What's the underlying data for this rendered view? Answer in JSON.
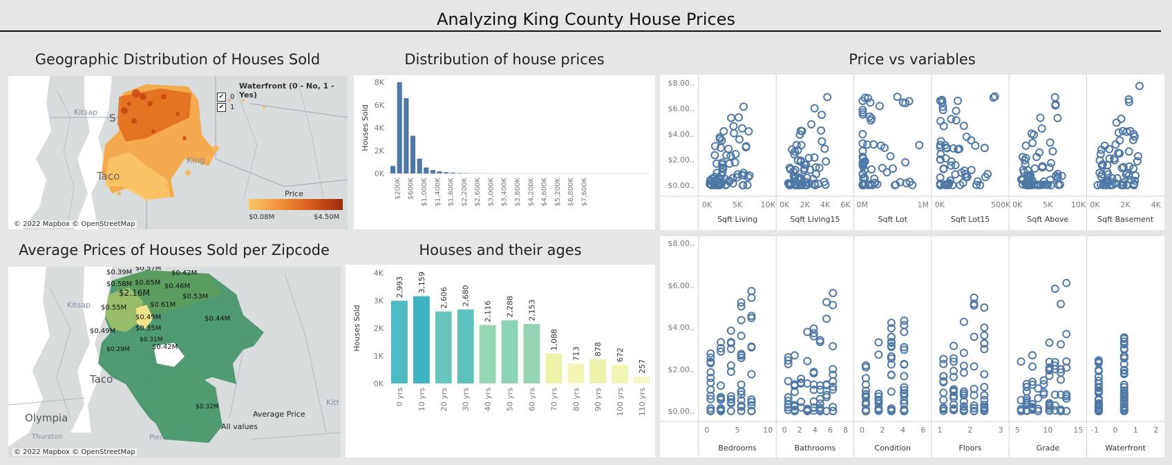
{
  "page": {
    "title": "Analyzing King County House Prices"
  },
  "geo": {
    "title": "Geographic Distribution of Houses Sold",
    "legend_title": "Waterfront (0 - No, 1 - Yes)",
    "legend_items": [
      {
        "label": "0",
        "checked": true
      },
      {
        "label": "1",
        "checked": true
      }
    ],
    "price_legend": {
      "title": "Price",
      "min": "$0.08M",
      "max": "$4.50M"
    },
    "place_labels": [
      "Kitsap",
      "Taco",
      "King",
      "S"
    ],
    "copyright": "© 2022 Mapbox © OpenStreetMap"
  },
  "zip": {
    "title": "Average Prices of Houses Sold per Zipcode",
    "labels": [
      "$0.39M",
      "$0.57M",
      "$0.42M",
      "$0.58M",
      "$0.65M",
      "$0.46M",
      "$2.16M",
      "$0.53M",
      "$0.55M",
      "$0.61M",
      "$0.49M",
      "$0.44M",
      "$0.35M",
      "$0.49M",
      "$0.31M",
      "$0.29M",
      "$0.42M",
      "$0.32M"
    ],
    "place_labels": [
      "Kitsap",
      "Olympia",
      "Thurston",
      "Taco",
      "Pierc",
      "Kitt"
    ],
    "legend_title": "Average Price",
    "legend_value": "All values",
    "copyright": "© 2022 Mapbox © OpenStreetMap"
  },
  "price_vs": {
    "title": "Price vs variables",
    "y_ticks": [
      "$8.00..",
      "$6.00..",
      "$4.00..",
      "$2.00..",
      "$0.00.."
    ],
    "top_row": [
      {
        "label": "Sqft Living",
        "ticks": [
          "0K",
          "5K",
          "10K"
        ]
      },
      {
        "label": "Sqft Living15",
        "ticks": [
          "0K",
          "2K",
          "4K",
          "6K"
        ]
      },
      {
        "label": "Sqft Lot",
        "ticks": [
          "0M",
          "1M"
        ]
      },
      {
        "label": "Sqft Lot15",
        "ticks": [
          "0K",
          "500K"
        ]
      },
      {
        "label": "Sqft Above",
        "ticks": [
          "0K",
          "5K",
          "10K"
        ]
      },
      {
        "label": "Sqft Basement",
        "ticks": [
          "0K",
          "2K",
          "4K"
        ]
      }
    ],
    "bottom_row": [
      {
        "label": "Bedrooms",
        "ticks": [
          "0",
          "5",
          "10"
        ]
      },
      {
        "label": "Bathrooms",
        "ticks": [
          "0",
          "2",
          "4",
          "6",
          "8"
        ]
      },
      {
        "label": "Condition",
        "ticks": [
          "0",
          "2",
          "4",
          "6"
        ]
      },
      {
        "label": "Floors",
        "ticks": [
          "1",
          "2",
          "3"
        ]
      },
      {
        "label": "Grade",
        "ticks": [
          "5",
          "10",
          "15"
        ]
      },
      {
        "label": "Waterfront",
        "ticks": [
          "-1",
          "0",
          "1",
          "2"
        ]
      }
    ]
  },
  "colors": {
    "bar_blue": "#4e79a7",
    "scatter_blue": "#4e79a7",
    "map_green": "#4f9a72"
  },
  "chart_data": [
    {
      "type": "bar",
      "title": "Distribution of house prices",
      "ylabel": "Houses Sold",
      "ylim": [
        0,
        8000
      ],
      "y_ticks": [
        "0K",
        "2K",
        "4K",
        "6K",
        "8K"
      ],
      "x_ticks": [
        "$200K",
        "$600K",
        "$1,000K",
        "$1,400K",
        "$1,800K",
        "$2,200K",
        "$2,600K",
        "$3,000K",
        "$3,400K",
        "$3,800K",
        "$4,200K",
        "$4,600K",
        "$5,200K",
        "$6,800K",
        "$7,600K"
      ],
      "values": [
        650,
        8000,
        6600,
        3300,
        1300,
        520,
        300,
        180,
        110,
        70,
        40,
        25,
        15,
        10,
        8,
        5,
        3,
        2,
        2,
        1,
        1,
        1,
        1,
        1,
        1,
        1,
        1,
        1,
        1,
        1,
        1,
        1,
        1,
        1,
        1,
        1,
        1,
        1,
        1
      ]
    },
    {
      "type": "bar",
      "title": "Houses and their ages",
      "ylabel": "Houses Sold",
      "ylim": [
        0,
        4000
      ],
      "y_ticks": [
        "0K",
        "1K",
        "2K",
        "3K",
        "4K"
      ],
      "categories": [
        "0 yrs",
        "10 yrs",
        "20 yrs",
        "30 yrs",
        "40 yrs",
        "50 yrs",
        "60 yrs",
        "70 yrs",
        "80 yrs",
        "90 yrs",
        "100 yrs",
        "110 yrs"
      ],
      "values": [
        2993,
        3159,
        2606,
        2680,
        2116,
        2288,
        2153,
        1088,
        713,
        878,
        672,
        257
      ],
      "data_labels": [
        "2,993",
        "3,159",
        "2,606",
        "2,680",
        "2,116",
        "2,288",
        "2,153",
        "1,088",
        "713",
        "878",
        "672",
        "257"
      ],
      "colors": [
        "#4dbbc4",
        "#3eb4c2",
        "#69c6bf",
        "#5ec1bc",
        "#95d7b4",
        "#8cd3b5",
        "#94d6b4",
        "#ebf2a6",
        "#f2f5b4",
        "#ecf2a9",
        "#f1f5b3",
        "#f6f8c7"
      ]
    }
  ]
}
